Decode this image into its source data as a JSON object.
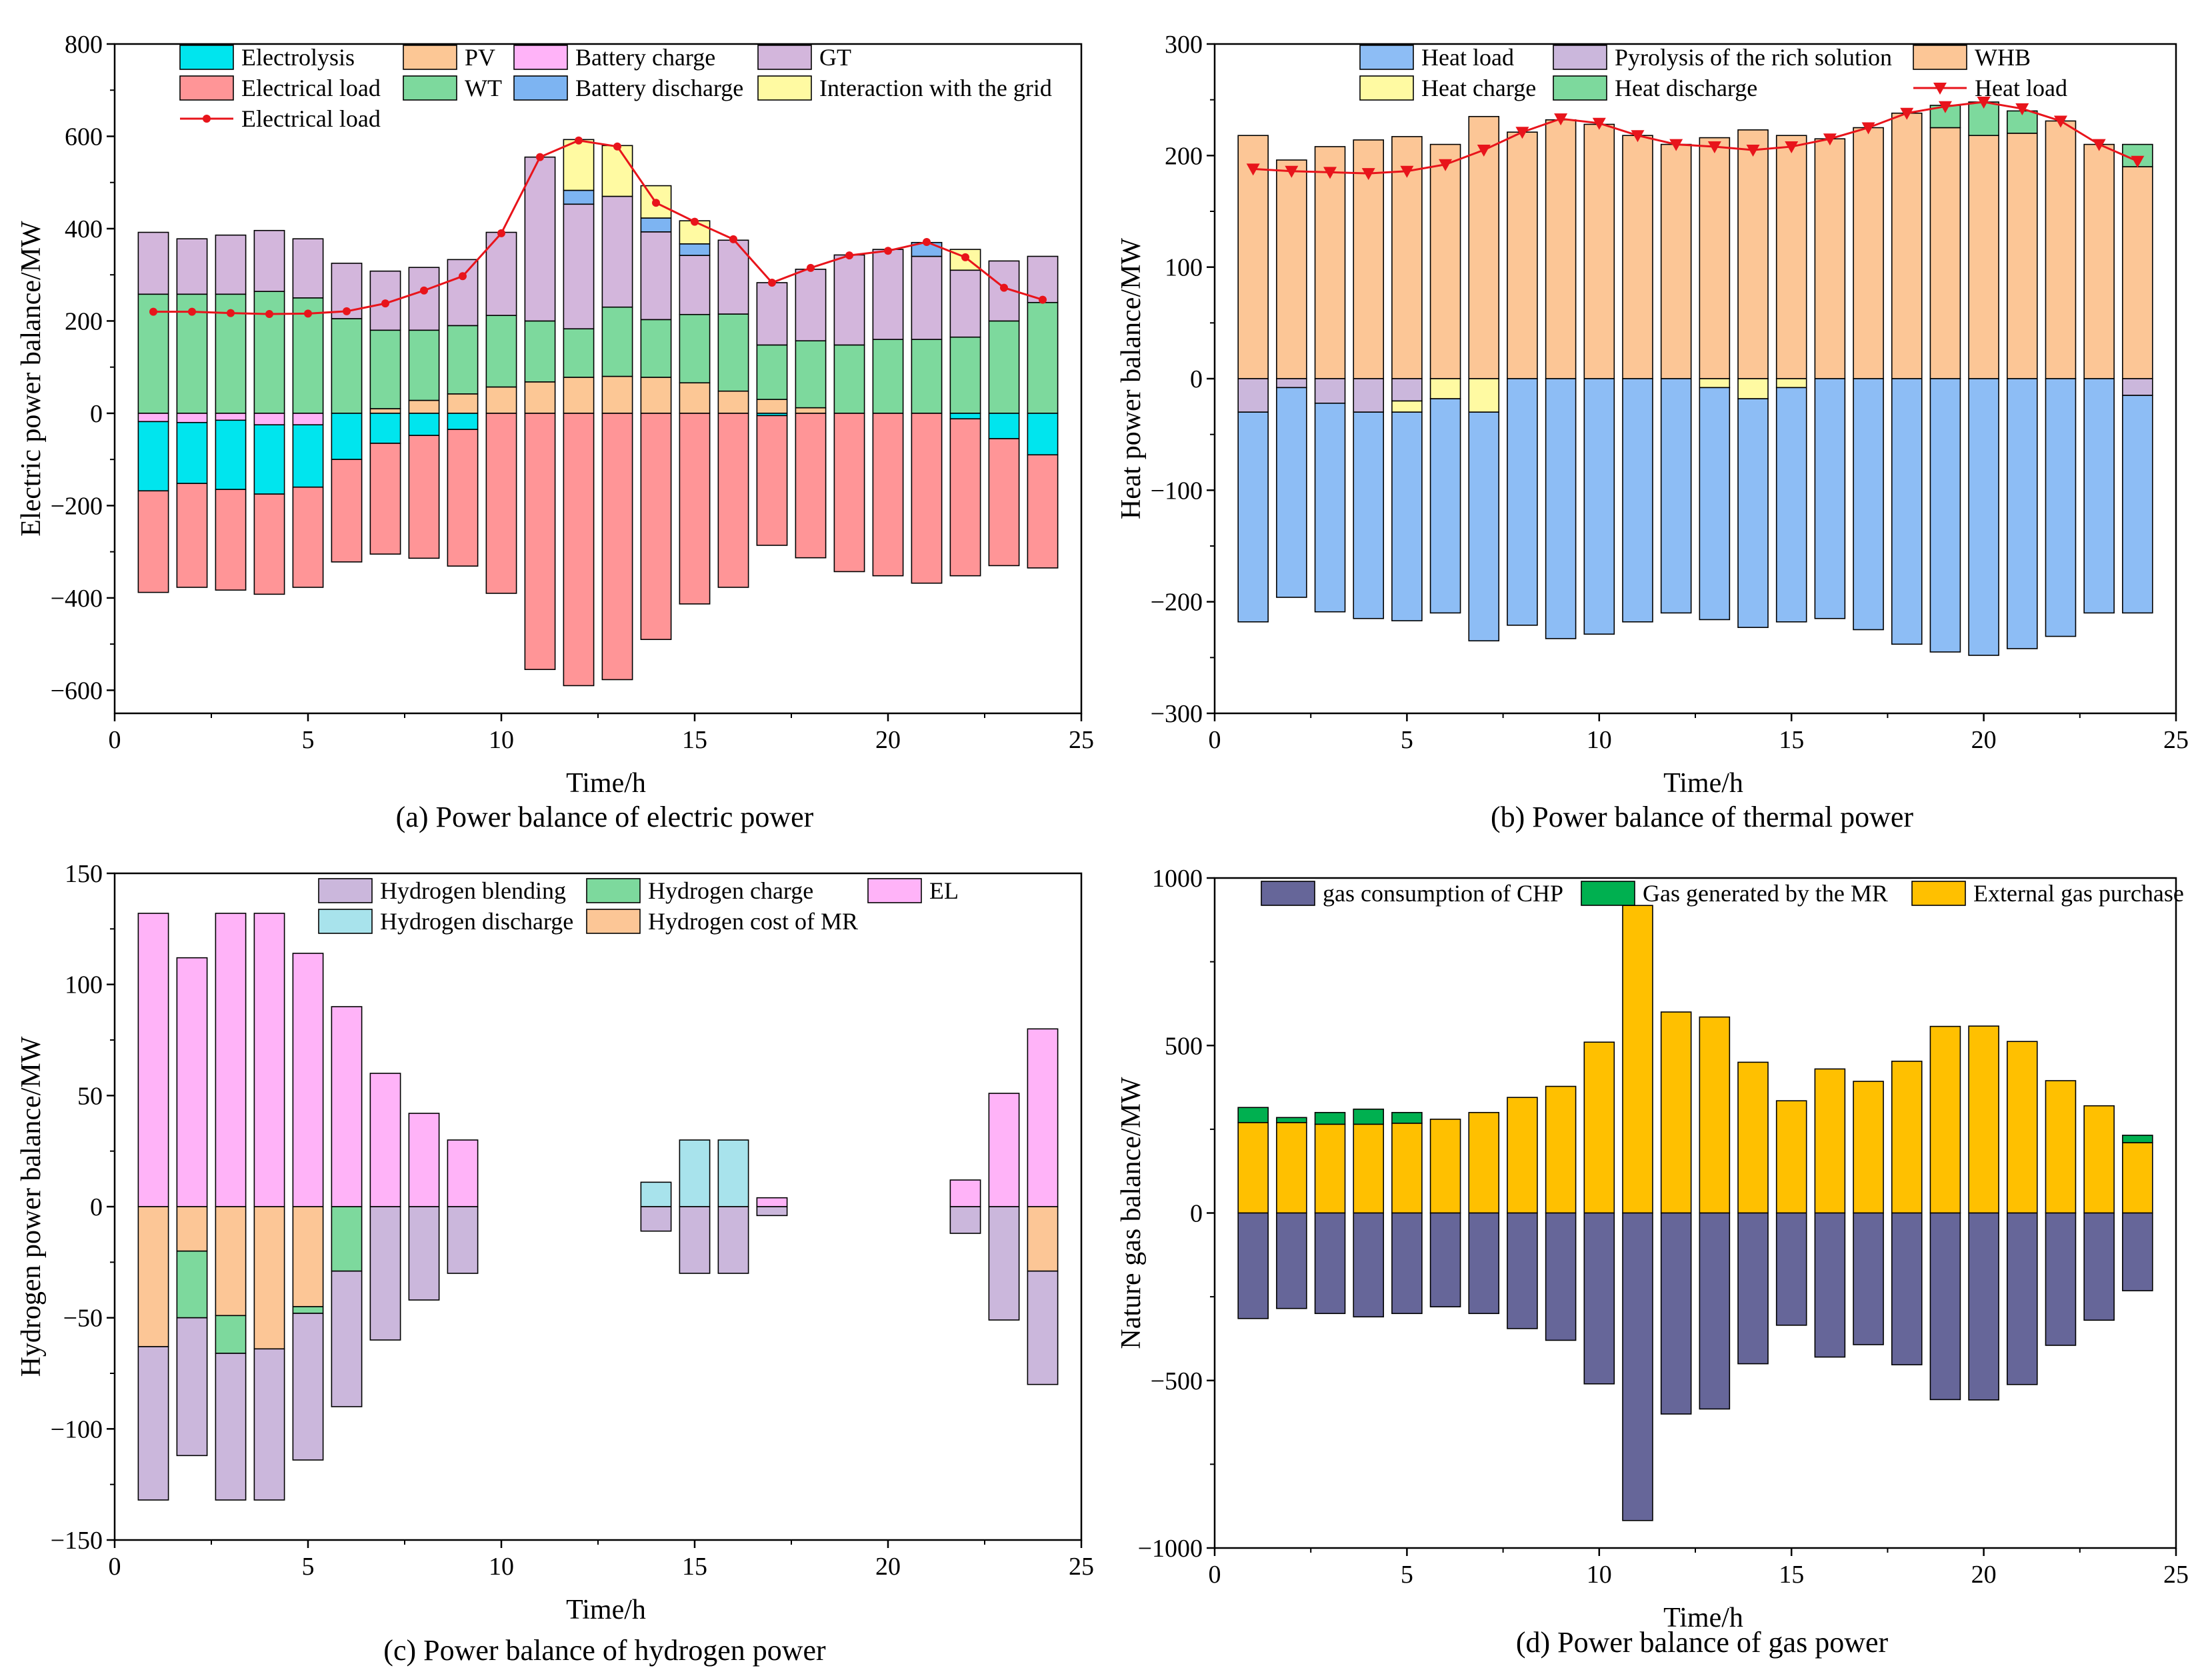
{
  "figure": {
    "background": "#ffffff"
  },
  "chart_data": [
    {
      "id": "a",
      "type": "bar",
      "stacked": true,
      "caption": "(a) Power balance of electric power",
      "xlabel": "Time/h",
      "ylabel": "Electric power balance/MW",
      "xlim": [
        0,
        25
      ],
      "ylim": [
        -650,
        800
      ],
      "xticks": [
        0,
        5,
        10,
        15,
        20,
        25
      ],
      "yticks": [
        -600,
        -400,
        -200,
        0,
        200,
        400,
        600,
        800
      ],
      "x": [
        1,
        2,
        3,
        4,
        5,
        6,
        7,
        8,
        9,
        10,
        11,
        12,
        13,
        14,
        15,
        16,
        17,
        18,
        19,
        20,
        21,
        22,
        23,
        24
      ],
      "legend": {
        "rows": [
          [
            {
              "label": "Electrolysis",
              "kind": "box",
              "color": "#00E5EE"
            },
            {
              "label": "PV",
              "kind": "box",
              "color": "#FCC795"
            },
            {
              "label": "Battery charge",
              "kind": "box",
              "color": "#FFB3F8"
            },
            {
              "label": "GT",
              "kind": "box",
              "color": "#D3B6DC"
            }
          ],
          [
            {
              "label": "Electrical load",
              "kind": "box",
              "color": "#FF9597"
            },
            {
              "label": "WT",
              "kind": "box",
              "color": "#7DD99D"
            },
            {
              "label": "Battery discharge",
              "kind": "box",
              "color": "#7DB4F2"
            },
            {
              "label": "Interaction  with the grid",
              "kind": "box",
              "color": "#FFFAA2"
            }
          ],
          [
            {
              "label": "Electrical load",
              "kind": "line",
              "color": "#E8141B",
              "marker": "circle"
            }
          ]
        ]
      },
      "positive_series": [
        {
          "name": "PV",
          "color": "#FCC795",
          "values": [
            0,
            0,
            0,
            0,
            0,
            0,
            10,
            28,
            42,
            57,
            68,
            78,
            80,
            78,
            66,
            48,
            30,
            12,
            0,
            0,
            0,
            0,
            0,
            0
          ]
        },
        {
          "name": "WT",
          "color": "#7DD99D",
          "values": [
            258,
            258,
            258,
            264,
            250,
            205,
            170,
            152,
            148,
            155,
            132,
            105,
            150,
            125,
            148,
            167,
            118,
            145,
            148,
            160,
            160,
            165,
            200,
            240
          ]
        },
        {
          "name": "GT",
          "color": "#D3B6DC",
          "values": [
            134,
            120,
            128,
            132,
            128,
            120,
            128,
            136,
            143,
            180,
            355,
            270,
            240,
            190,
            128,
            160,
            135,
            155,
            195,
            195,
            180,
            145,
            130,
            100
          ]
        },
        {
          "name": "Battery discharge",
          "color": "#7DB4F2",
          "values": [
            0,
            0,
            0,
            0,
            0,
            0,
            0,
            0,
            0,
            0,
            0,
            30,
            0,
            30,
            25,
            0,
            0,
            0,
            0,
            0,
            30,
            0,
            0,
            0
          ]
        },
        {
          "name": "Interaction  with the grid",
          "color": "#FFFAA2",
          "values": [
            0,
            0,
            0,
            0,
            0,
            0,
            0,
            0,
            0,
            0,
            0,
            110,
            110,
            70,
            50,
            0,
            0,
            0,
            0,
            0,
            0,
            45,
            0,
            0
          ]
        }
      ],
      "negative_series": [
        {
          "name": "Battery charge",
          "color": "#FFB3F8",
          "values": [
            18,
            20,
            15,
            25,
            25,
            0,
            0,
            0,
            0,
            0,
            0,
            0,
            0,
            0,
            0,
            0,
            0,
            0,
            0,
            0,
            0,
            0,
            0,
            0
          ]
        },
        {
          "name": "Electrolysis",
          "color": "#00E5EE",
          "values": [
            150,
            132,
            150,
            150,
            135,
            100,
            65,
            48,
            35,
            0,
            0,
            0,
            0,
            0,
            0,
            0,
            5,
            0,
            0,
            0,
            0,
            12,
            55,
            90
          ]
        },
        {
          "name": "Electrical load",
          "color": "#FF9597",
          "values": [
            220,
            225,
            218,
            217,
            217,
            222,
            240,
            266,
            296,
            390,
            555,
            590,
            577,
            490,
            413,
            377,
            281,
            313,
            343,
            352,
            368,
            340,
            275,
            245
          ]
        }
      ],
      "line_series": {
        "name": "Electrical load",
        "color": "#E8141B",
        "marker": "circle",
        "values": [
          220,
          220,
          217,
          215,
          216,
          221,
          238,
          266,
          297,
          390,
          555,
          591,
          578,
          456,
          415,
          377,
          283,
          315,
          342,
          352,
          371,
          338,
          272,
          246
        ]
      }
    },
    {
      "id": "b",
      "type": "bar",
      "stacked": true,
      "caption": "(b) Power balance of thermal power",
      "xlabel": "Time/h",
      "ylabel": "Heat power balance/MW",
      "xlim": [
        0,
        25
      ],
      "ylim": [
        -300,
        300
      ],
      "xticks": [
        0,
        5,
        10,
        15,
        20,
        25
      ],
      "yticks": [
        -300,
        -200,
        -100,
        0,
        100,
        200,
        300
      ],
      "x": [
        1,
        2,
        3,
        4,
        5,
        6,
        7,
        8,
        9,
        10,
        11,
        12,
        13,
        14,
        15,
        16,
        17,
        18,
        19,
        20,
        21,
        22,
        23,
        24
      ],
      "legend": {
        "rows": [
          [
            {
              "label": "Heat load",
              "kind": "box",
              "color": "#8DBDF5"
            },
            {
              "label": "Pyrolysis of the rich solution",
              "kind": "box",
              "color": "#CBB7DC"
            },
            {
              "label": "WHB",
              "kind": "box",
              "color": "#FCC696"
            }
          ],
          [
            {
              "label": "Heat charge",
              "kind": "box",
              "color": "#FFFAA2"
            },
            {
              "label": "Heat discharge",
              "kind": "box",
              "color": "#7DD99D"
            },
            {
              "label": "Heat load",
              "kind": "line",
              "color": "#E8141B",
              "marker": "triangle-down"
            }
          ]
        ]
      },
      "positive_series": [
        {
          "name": "WHB",
          "color": "#FCC696",
          "values": [
            218,
            196,
            208,
            214,
            217,
            210,
            235,
            221,
            232,
            228,
            218,
            210,
            216,
            223,
            218,
            215,
            225,
            238,
            225,
            218,
            220,
            231,
            210,
            190
          ]
        },
        {
          "name": "Heat discharge",
          "color": "#7DD99D",
          "values": [
            0,
            0,
            0,
            0,
            0,
            0,
            0,
            0,
            0,
            0,
            0,
            0,
            0,
            0,
            0,
            0,
            0,
            0,
            20,
            30,
            20,
            0,
            0,
            20
          ]
        }
      ],
      "negative_series": [
        {
          "name": "Pyrolysis of the rich solution",
          "color": "#CBB7DC",
          "values": [
            30,
            8,
            22,
            30,
            20,
            0,
            0,
            0,
            0,
            0,
            0,
            0,
            0,
            0,
            0,
            0,
            0,
            0,
            0,
            0,
            0,
            0,
            0,
            15
          ]
        },
        {
          "name": "Heat charge",
          "color": "#FFFAA2",
          "values": [
            0,
            0,
            0,
            0,
            10,
            18,
            30,
            0,
            0,
            0,
            0,
            0,
            8,
            18,
            8,
            0,
            0,
            0,
            0,
            0,
            0,
            0,
            0,
            0
          ]
        },
        {
          "name": "Heat load",
          "color": "#8DBDF5",
          "values": [
            188,
            188,
            187,
            185,
            187,
            192,
            205,
            221,
            233,
            229,
            218,
            210,
            208,
            205,
            210,
            215,
            225,
            238,
            245,
            248,
            242,
            231,
            210,
            195
          ]
        }
      ],
      "line_series": {
        "name": "Heat load",
        "color": "#E8141B",
        "marker": "triangle-down",
        "values": [
          188,
          186,
          185,
          184,
          186,
          192,
          205,
          221,
          233,
          229,
          218,
          210,
          208,
          205,
          208,
          215,
          225,
          238,
          244,
          248,
          242,
          231,
          210,
          195
        ]
      }
    },
    {
      "id": "c",
      "type": "bar",
      "stacked": true,
      "caption": "(c) Power balance of hydrogen power",
      "xlabel": "Time/h",
      "ylabel": "Hydrogen power balance/MW",
      "xlim": [
        0,
        25
      ],
      "ylim": [
        -150,
        150
      ],
      "xticks": [
        0,
        5,
        10,
        15,
        20,
        25
      ],
      "yticks": [
        -150,
        -100,
        -50,
        0,
        50,
        100,
        150
      ],
      "x": [
        1,
        2,
        3,
        4,
        5,
        6,
        7,
        8,
        9,
        10,
        11,
        12,
        13,
        14,
        15,
        16,
        17,
        18,
        19,
        20,
        21,
        22,
        23,
        24
      ],
      "legend": {
        "rows": [
          [
            {
              "label": "Hydrogen blending",
              "kind": "box",
              "color": "#CBB7DC"
            },
            {
              "label": "Hydrogen charge",
              "kind": "box",
              "color": "#7DD99D"
            },
            {
              "label": "EL",
              "kind": "box",
              "color": "#FFB3F8"
            }
          ],
          [
            {
              "label": "Hydrogen discharge",
              "kind": "box",
              "color": "#A8E3EC"
            },
            {
              "label": "Hydrogen cost of MR",
              "kind": "box",
              "color": "#FCC696"
            }
          ]
        ]
      },
      "positive_series": [
        {
          "name": "EL",
          "color": "#FFB3F8",
          "values": [
            132,
            112,
            132,
            132,
            114,
            90,
            60,
            42,
            30,
            0,
            0,
            0,
            0,
            0,
            0,
            0,
            4,
            0,
            0,
            0,
            0,
            12,
            51,
            80
          ]
        },
        {
          "name": "Hydrogen discharge",
          "color": "#A8E3EC",
          "values": [
            0,
            0,
            0,
            0,
            0,
            0,
            0,
            0,
            0,
            0,
            0,
            0,
            0,
            11,
            30,
            30,
            0,
            0,
            0,
            0,
            0,
            0,
            0,
            0
          ]
        }
      ],
      "negative_series": [
        {
          "name": "Hydrogen cost of MR",
          "color": "#FCC696",
          "values": [
            63,
            20,
            49,
            64,
            45,
            0,
            0,
            0,
            0,
            0,
            0,
            0,
            0,
            0,
            0,
            0,
            0,
            0,
            0,
            0,
            0,
            0,
            0,
            29
          ]
        },
        {
          "name": "Hydrogen charge",
          "color": "#7DD99D",
          "values": [
            0,
            30,
            17,
            0,
            3,
            29,
            0,
            0,
            0,
            0,
            0,
            0,
            0,
            0,
            0,
            0,
            0,
            0,
            0,
            0,
            0,
            0,
            0,
            0
          ]
        },
        {
          "name": "Hydrogen blending",
          "color": "#CBB7DC",
          "values": [
            69,
            62,
            66,
            68,
            66,
            61,
            60,
            42,
            30,
            0,
            0,
            0,
            0,
            11,
            30,
            30,
            4,
            0,
            0,
            0,
            0,
            12,
            51,
            51
          ]
        }
      ]
    },
    {
      "id": "d",
      "type": "bar",
      "stacked": true,
      "caption": "(d) Power balance of gas power",
      "xlabel": "Time/h",
      "ylabel": "Nature gas balance/MW",
      "xlim": [
        0,
        25
      ],
      "ylim": [
        -1000,
        1000
      ],
      "xticks": [
        0,
        5,
        10,
        15,
        20,
        25
      ],
      "yticks": [
        -1000,
        -500,
        0,
        500,
        1000
      ],
      "x": [
        1,
        2,
        3,
        4,
        5,
        6,
        7,
        8,
        9,
        10,
        11,
        12,
        13,
        14,
        15,
        16,
        17,
        18,
        19,
        20,
        21,
        22,
        23,
        24
      ],
      "legend": {
        "rows": [
          [
            {
              "label": "gas consumption of CHP",
              "kind": "box",
              "color": "#666699"
            },
            {
              "label": "Gas generated by the MR",
              "kind": "box",
              "color": "#00B050"
            },
            {
              "label": "External gas purchase",
              "kind": "box",
              "color": "#FFC000"
            }
          ]
        ]
      },
      "positive_series": [
        {
          "name": "External gas purchase",
          "color": "#FFC000",
          "values": [
            270,
            270,
            265,
            265,
            268,
            280,
            300,
            345,
            378,
            510,
            918,
            600,
            585,
            450,
            335,
            430,
            393,
            453,
            557,
            558,
            512,
            395,
            320,
            210
          ]
        },
        {
          "name": "Gas generated by the MR",
          "color": "#00B050",
          "values": [
            45,
            15,
            35,
            45,
            32,
            0,
            0,
            0,
            0,
            0,
            0,
            0,
            0,
            0,
            0,
            0,
            0,
            0,
            0,
            0,
            0,
            0,
            0,
            22
          ]
        }
      ],
      "negative_series": [
        {
          "name": "gas consumption of CHP",
          "color": "#666699",
          "values": [
            315,
            285,
            300,
            310,
            300,
            280,
            300,
            345,
            380,
            510,
            918,
            600,
            585,
            450,
            335,
            430,
            393,
            453,
            557,
            558,
            512,
            395,
            320,
            232
          ]
        }
      ]
    }
  ]
}
